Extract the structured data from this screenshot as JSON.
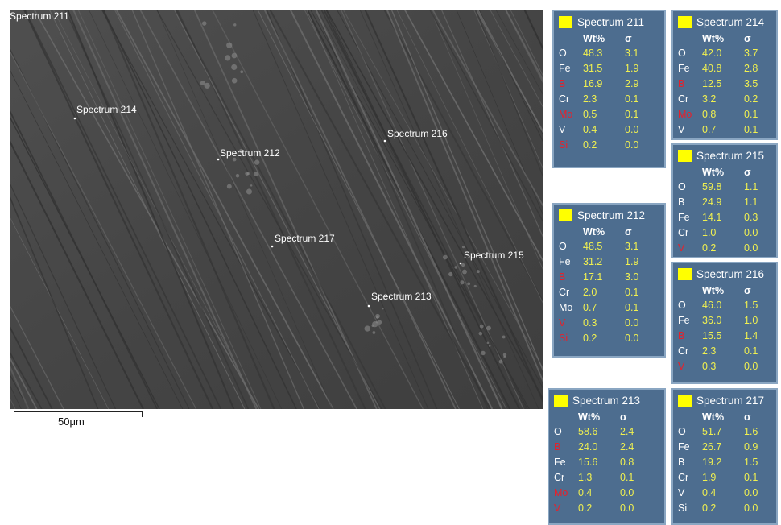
{
  "image": {
    "labels": [
      "Spectrum 211",
      "Spectrum 214",
      "Spectrum 212",
      "Spectrum 216",
      "Spectrum 217",
      "Spectrum 215",
      "Spectrum 213"
    ],
    "scale_bar": "50μm"
  },
  "value_color": "#f0f050",
  "spectra": [
    {
      "title": "Spectrum 211",
      "headers": [
        "Wt%",
        "σ"
      ],
      "rows": [
        {
          "element": "O",
          "wt": "48.3",
          "sigma": "3.1",
          "color": "#ffffff"
        },
        {
          "element": "Fe",
          "wt": "31.5",
          "sigma": "1.9",
          "color": "#ffffff"
        },
        {
          "element": "B",
          "wt": "16.9",
          "sigma": "2.9",
          "color": "#e8202a"
        },
        {
          "element": "Cr",
          "wt": "2.3",
          "sigma": "0.1",
          "color": "#ffffff"
        },
        {
          "element": "Mo",
          "wt": "0.5",
          "sigma": "0.1",
          "color": "#e8202a"
        },
        {
          "element": "V",
          "wt": "0.4",
          "sigma": "0.0",
          "color": "#ffffff"
        },
        {
          "element": "Si",
          "wt": "0.2",
          "sigma": "0.0",
          "color": "#e8202a"
        }
      ]
    },
    {
      "title": "Spectrum 214",
      "headers": [
        "Wt%",
        "σ"
      ],
      "rows": [
        {
          "element": "O",
          "wt": "42.0",
          "sigma": "3.7",
          "color": "#ffffff"
        },
        {
          "element": "Fe",
          "wt": "40.8",
          "sigma": "2.8",
          "color": "#ffffff"
        },
        {
          "element": "B",
          "wt": "12.5",
          "sigma": "3.5",
          "color": "#e8202a"
        },
        {
          "element": "Cr",
          "wt": "3.2",
          "sigma": "0.2",
          "color": "#ffffff"
        },
        {
          "element": "Mo",
          "wt": "0.8",
          "sigma": "0.1",
          "color": "#e8202a"
        },
        {
          "element": "V",
          "wt": "0.7",
          "sigma": "0.1",
          "color": "#ffffff"
        }
      ]
    },
    {
      "title": "Spectrum 215",
      "headers": [
        "Wt%",
        "σ"
      ],
      "rows": [
        {
          "element": "O",
          "wt": "59.8",
          "sigma": "1.1",
          "color": "#ffffff"
        },
        {
          "element": "B",
          "wt": "24.9",
          "sigma": "1.1",
          "color": "#ffffff"
        },
        {
          "element": "Fe",
          "wt": "14.1",
          "sigma": "0.3",
          "color": "#ffffff"
        },
        {
          "element": "Cr",
          "wt": "1.0",
          "sigma": "0.0",
          "color": "#ffffff"
        },
        {
          "element": "V",
          "wt": "0.2",
          "sigma": "0.0",
          "color": "#e8202a"
        }
      ]
    },
    {
      "title": "Spectrum 212",
      "headers": [
        "Wt%",
        "σ"
      ],
      "rows": [
        {
          "element": "O",
          "wt": "48.5",
          "sigma": "3.1",
          "color": "#ffffff"
        },
        {
          "element": "Fe",
          "wt": "31.2",
          "sigma": "1.9",
          "color": "#ffffff"
        },
        {
          "element": "B",
          "wt": "17.1",
          "sigma": "3.0",
          "color": "#e8202a"
        },
        {
          "element": "Cr",
          "wt": "2.0",
          "sigma": "0.1",
          "color": "#ffffff"
        },
        {
          "element": "Mo",
          "wt": "0.7",
          "sigma": "0.1",
          "color": "#ffffff"
        },
        {
          "element": "V",
          "wt": "0.3",
          "sigma": "0.0",
          "color": "#e8202a"
        },
        {
          "element": "Si",
          "wt": "0.2",
          "sigma": "0.0",
          "color": "#e8202a"
        }
      ]
    },
    {
      "title": "Spectrum 216",
      "headers": [
        "Wt%",
        "σ"
      ],
      "rows": [
        {
          "element": "O",
          "wt": "46.0",
          "sigma": "1.5",
          "color": "#ffffff"
        },
        {
          "element": "Fe",
          "wt": "36.0",
          "sigma": "1.0",
          "color": "#ffffff"
        },
        {
          "element": "B",
          "wt": "15.5",
          "sigma": "1.4",
          "color": "#e8202a"
        },
        {
          "element": "Cr",
          "wt": "2.3",
          "sigma": "0.1",
          "color": "#ffffff"
        },
        {
          "element": "V",
          "wt": "0.3",
          "sigma": "0.0",
          "color": "#e8202a"
        }
      ]
    },
    {
      "title": "Spectrum 213",
      "headers": [
        "Wt%",
        "σ"
      ],
      "rows": [
        {
          "element": "O",
          "wt": "58.6",
          "sigma": "2.4",
          "color": "#ffffff"
        },
        {
          "element": "B",
          "wt": "24.0",
          "sigma": "2.4",
          "color": "#e8202a"
        },
        {
          "element": "Fe",
          "wt": "15.6",
          "sigma": "0.8",
          "color": "#ffffff"
        },
        {
          "element": "Cr",
          "wt": "1.3",
          "sigma": "0.1",
          "color": "#ffffff"
        },
        {
          "element": "Mo",
          "wt": "0.4",
          "sigma": "0.0",
          "color": "#e8202a"
        },
        {
          "element": "V",
          "wt": "0.2",
          "sigma": "0.0",
          "color": "#e8202a"
        }
      ]
    },
    {
      "title": "Spectrum 217",
      "headers": [
        "Wt%",
        "σ"
      ],
      "rows": [
        {
          "element": "O",
          "wt": "51.7",
          "sigma": "1.6",
          "color": "#ffffff"
        },
        {
          "element": "Fe",
          "wt": "26.7",
          "sigma": "0.9",
          "color": "#ffffff"
        },
        {
          "element": "B",
          "wt": "19.2",
          "sigma": "1.5",
          "color": "#ffffff"
        },
        {
          "element": "Cr",
          "wt": "1.9",
          "sigma": "0.1",
          "color": "#ffffff"
        },
        {
          "element": "V",
          "wt": "0.4",
          "sigma": "0.0",
          "color": "#ffffff"
        },
        {
          "element": "Si",
          "wt": "0.2",
          "sigma": "0.0",
          "color": "#ffffff"
        }
      ]
    }
  ]
}
